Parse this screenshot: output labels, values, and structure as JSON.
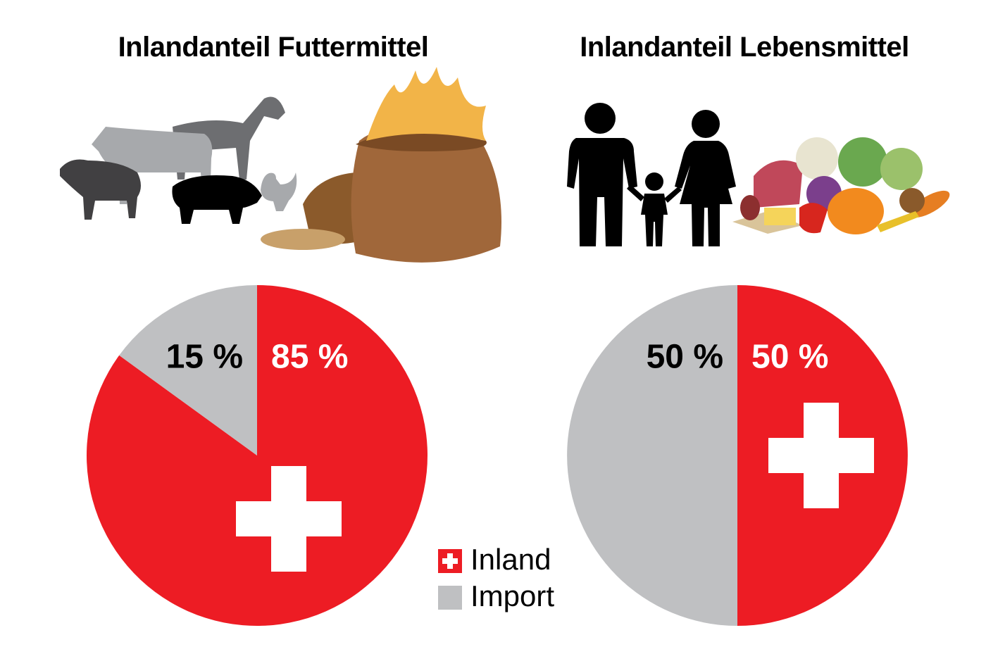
{
  "chart_data": [
    {
      "type": "pie",
      "title": "Inlandanteil Futtermittel",
      "values": [
        85,
        15
      ],
      "value_labels": [
        "85 %",
        "15 %"
      ]
    },
    {
      "type": "pie",
      "title": "Inlandanteil Lebensmittel",
      "values": [
        50,
        50
      ],
      "value_labels": [
        "50 %",
        "50 %"
      ]
    }
  ],
  "legend": {
    "items": [
      {
        "label": "Inland",
        "color": "#ed1c24"
      },
      {
        "label": "Import",
        "color": "#bfc0c2"
      }
    ]
  }
}
